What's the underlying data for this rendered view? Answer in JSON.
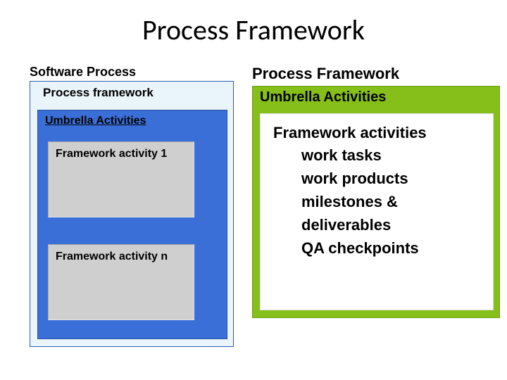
{
  "title": "Process Framework",
  "left": {
    "software_process": "Software Process",
    "process_framework": "Process framework",
    "umbrella": "Umbrella Activities",
    "activity1": "Framework activity 1",
    "activityN": "Framework activity  n",
    "colors": {
      "outer_bg": "#e9f4fb",
      "outer_border": "#2e5fb3",
      "blue_bg": "#3b6fd8",
      "blue_border": "#2a4fa0",
      "gray_bg": "#cfcfcf"
    }
  },
  "right": {
    "heading": "Process Framework",
    "umbrella": "Umbrella Activities",
    "fa_heading": "Framework activities",
    "items": [
      "work tasks",
      "work products",
      "milestones & deliverables",
      "QA checkpoints"
    ],
    "colors": {
      "green_bg": "#87bf1a",
      "green_border": "#6f9f14",
      "panel_bg": "#ffffff"
    }
  },
  "typography": {
    "title_fontsize": 40,
    "label_fontsize": 18,
    "item_fontsize": 22
  }
}
